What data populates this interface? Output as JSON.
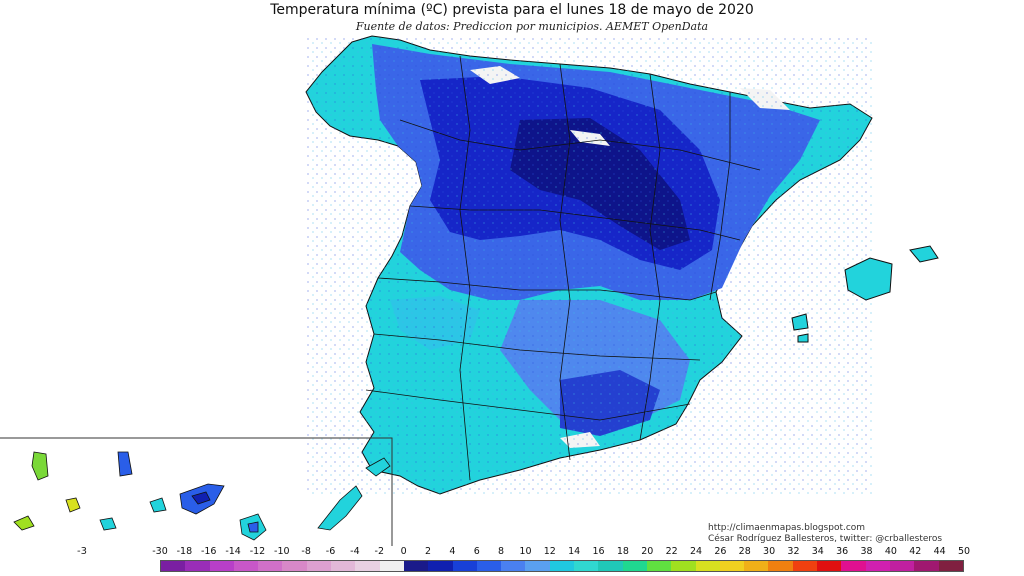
{
  "header": {
    "title": "Temperatura mínima (ºC) prevista para el lunes 18 de mayo de 2020",
    "subtitle": "Fuente de datos: Prediccion por municipios. AEMET OpenData"
  },
  "credits": {
    "url": "http://climaenmapas.blogspot.com",
    "author": "César Rodríguez Ballesteros, twitter: @crballesteros"
  },
  "stray_label": "-3",
  "legend": {
    "labels": [
      "-30",
      "-18",
      "-16",
      "-14",
      "-12",
      "-10",
      "-8",
      "-6",
      "-4",
      "-2",
      "0",
      "2",
      "4",
      "6",
      "8",
      "10",
      "12",
      "14",
      "16",
      "18",
      "20",
      "22",
      "24",
      "26",
      "28",
      "30",
      "32",
      "34",
      "36",
      "38",
      "40",
      "42",
      "44",
      "50"
    ],
    "colors": [
      "#7a1fa2",
      "#9a2db8",
      "#b83fc8",
      "#c857c8",
      "#d070c8",
      "#d888c8",
      "#dda0d0",
      "#e2b8d8",
      "#e8d0e2",
      "#f0f0f0",
      "#1a1a8a",
      "#1020b0",
      "#1840d8",
      "#2a5ee8",
      "#4a80f0",
      "#5aa0f0",
      "#20c8e0",
      "#30d8d0",
      "#20c8b8",
      "#20d890",
      "#60e040",
      "#a0e020",
      "#d8e020",
      "#f0d020",
      "#f0b018",
      "#f08010",
      "#f04010",
      "#e01010",
      "#e01090",
      "#d020b0",
      "#c020a0",
      "#a01870",
      "#802040"
    ]
  },
  "chart_data": {
    "type": "heatmap",
    "title": "Temperatura mínima (ºC) prevista para el lunes 18 de mayo de 2020",
    "subtitle": "Fuente de datos: Prediccion por municipios. AEMET OpenData",
    "colorbar_ticks": [
      "-30",
      "-18",
      "-16",
      "-14",
      "-12",
      "-10",
      "-8",
      "-6",
      "-4",
      "-2",
      "0",
      "2",
      "4",
      "6",
      "8",
      "10",
      "12",
      "14",
      "16",
      "18",
      "20",
      "22",
      "24",
      "26",
      "28",
      "30",
      "32",
      "34",
      "36",
      "38",
      "40",
      "42",
      "44",
      "50"
    ],
    "regions": [
      "Península",
      "Islas Baleares",
      "Islas Canarias"
    ]
  }
}
